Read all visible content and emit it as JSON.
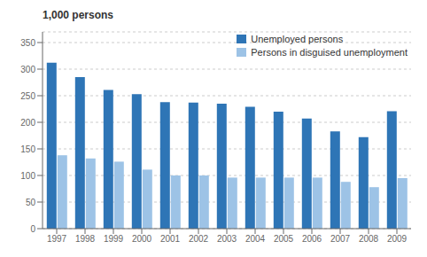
{
  "chart_data": {
    "type": "bar",
    "ylabel": "1,000 persons",
    "categories": [
      "1997",
      "1998",
      "1999",
      "2000",
      "2001",
      "2002",
      "2003",
      "2004",
      "2005",
      "2006",
      "2007",
      "2008",
      "2009"
    ],
    "series": [
      {
        "name": "Unemployed persons",
        "color": "#2E75B6",
        "values": [
          312,
          285,
          261,
          253,
          238,
          237,
          235,
          229,
          220,
          207,
          183,
          172,
          221
        ]
      },
      {
        "name": "Persons in disguised unemployment",
        "color": "#9DC3E6",
        "values": [
          138,
          132,
          126,
          111,
          100,
          100,
          96,
          96,
          96,
          96,
          88,
          78,
          95
        ]
      }
    ],
    "ylim": [
      0,
      370
    ],
    "yticks": [
      0,
      50,
      100,
      150,
      200,
      250,
      300,
      350
    ],
    "grid": true,
    "legend": "upper right"
  }
}
